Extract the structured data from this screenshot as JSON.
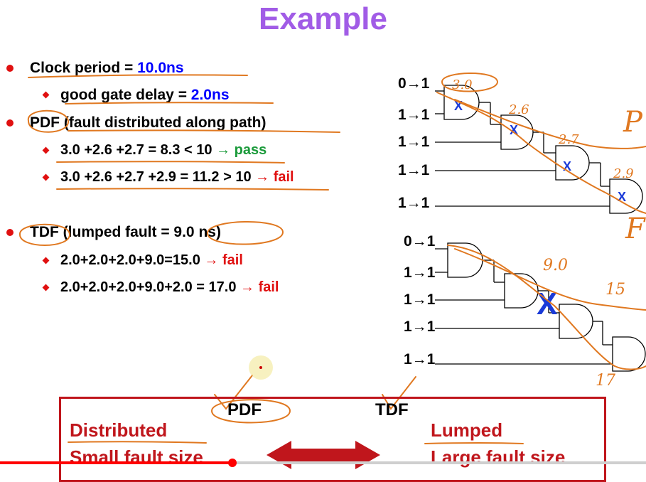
{
  "slide": {
    "title": "Example",
    "clock": {
      "label": "Clock period = ",
      "value": "10.0ns"
    },
    "gate": {
      "label": "good gate delay = ",
      "value": "2.0ns"
    },
    "pdf": {
      "label": "PDF",
      "desc": " (fault distributed along path)"
    },
    "pdf_lines": [
      {
        "expr": "3.0 +2.6 +2.7 = 8.3 < 10 ",
        "arrow": "→",
        "result": " pass"
      },
      {
        "expr": "3.0 +2.6 +2.7 +2.9 = 11.2 > 10 ",
        "arrow": "→",
        "result": " fail"
      }
    ],
    "tdf": {
      "label": "TDF",
      "desc": " (lumped fault = ",
      "value": "9.0 ns)"
    },
    "tdf_lines": [
      {
        "expr": "2.0+2.0+2.0+9.0=15.0 ",
        "arrow": "→",
        "result": " fail"
      },
      {
        "expr": "2.0+2.0+2.0+9.0+2.0 = 17.0 ",
        "arrow": "→",
        "result": " fail"
      }
    ]
  },
  "circuit_top": {
    "inputs": [
      "0→1",
      "1→1",
      "1→1",
      "1→1",
      "1→1"
    ],
    "annotations": [
      "3.0",
      "2.6",
      "2.7",
      "2.9",
      "P",
      "F"
    ]
  },
  "circuit_bottom": {
    "inputs": [
      "0→1",
      "1→1",
      "1→1",
      "1→1",
      "1→1"
    ],
    "annotations": [
      "9.0",
      "15",
      "17"
    ]
  },
  "compare": {
    "pdf": "PDF",
    "tdf": "TDF",
    "left1": "Distributed",
    "left2": "Small fault size",
    "right1": "Lumped",
    "right2": "Large fault size"
  },
  "colors": {
    "title": "#a15ce6",
    "value": "#0000ff",
    "pass": "#1a9a3a",
    "fail": "#e01010",
    "ink": "#e07820"
  },
  "video": {
    "progress": 0.36
  }
}
